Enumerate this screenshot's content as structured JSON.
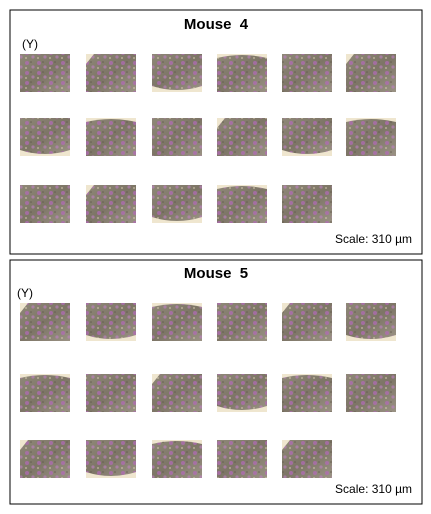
{
  "panels": [
    {
      "title": "Mouse  4",
      "label": "(Y)",
      "scale": "Scale: 310 µm"
    },
    {
      "title": "Mouse  5",
      "label": "(Y)",
      "scale": "Scale: 310 µm"
    }
  ]
}
